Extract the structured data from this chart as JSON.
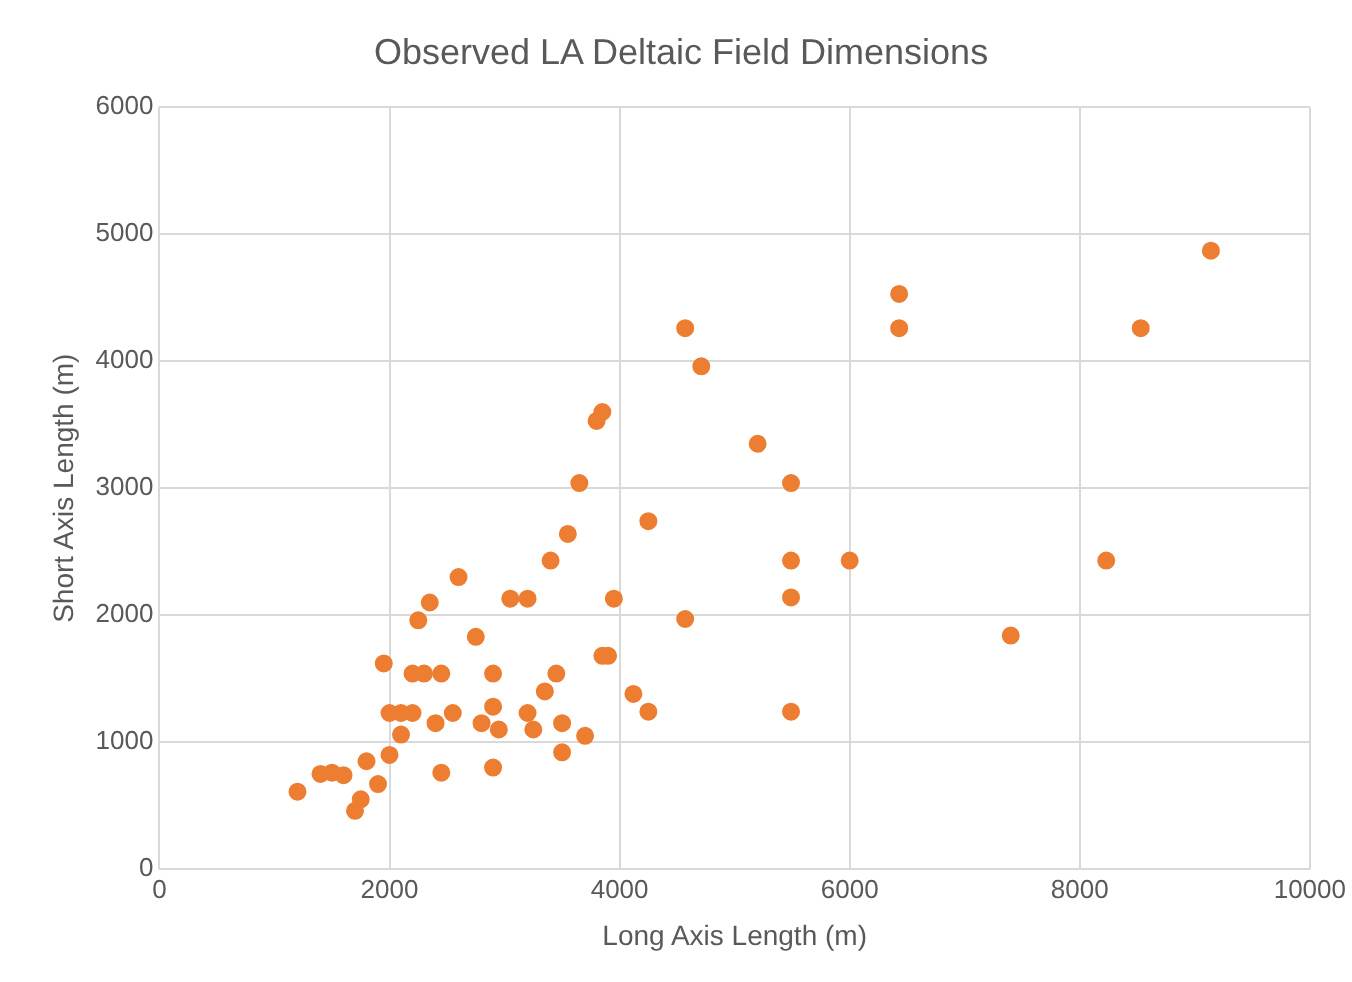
{
  "chart_data": {
    "type": "scatter",
    "title": "Observed LA Deltaic Field Dimensions",
    "xlabel": "Long Axis Length (m)",
    "ylabel": "Short Axis Length (m)",
    "x": [
      1200,
      1400,
      1500,
      1600,
      1700,
      1750,
      1800,
      1900,
      1950,
      2000,
      2000,
      2100,
      2100,
      2200,
      2200,
      2250,
      2300,
      2350,
      2400,
      2450,
      2450,
      2550,
      2600,
      2750,
      2800,
      2900,
      2900,
      2900,
      2950,
      3050,
      3200,
      3200,
      3250,
      3350,
      3400,
      3450,
      3500,
      3500,
      3550,
      3650,
      3700,
      3800,
      3850,
      3850,
      3900,
      3950,
      4120,
      4250,
      4250,
      4570,
      4570,
      4710,
      5200,
      5490,
      5490,
      5490,
      5490,
      6000,
      6430,
      6430,
      7400,
      8230,
      8530,
      9140
    ],
    "values": [
      610,
      750,
      760,
      740,
      460,
      550,
      850,
      670,
      1620,
      1230,
      900,
      1060,
      1230,
      1540,
      1230,
      1960,
      1540,
      2100,
      1150,
      1540,
      760,
      1230,
      2300,
      1830,
      1150,
      1540,
      1280,
      800,
      1100,
      2130,
      2130,
      1230,
      1100,
      1400,
      2430,
      1540,
      1150,
      920,
      2640,
      3040,
      1050,
      3530,
      3600,
      1680,
      1680,
      2130,
      1380,
      2740,
      1240,
      4260,
      1970,
      3960,
      3350,
      3040,
      2430,
      2140,
      1240,
      2430,
      4530,
      4260,
      1840,
      2430,
      4260,
      4870
    ],
    "color": "#ed7d31",
    "marker": "circle",
    "grid": true,
    "xlim": [
      0,
      10000
    ],
    "xticks": [
      0,
      2000,
      4000,
      6000,
      8000,
      10000
    ],
    "ylim": [
      0,
      6000
    ],
    "yticks": [
      0,
      1000,
      2000,
      3000,
      4000,
      5000,
      6000
    ]
  }
}
